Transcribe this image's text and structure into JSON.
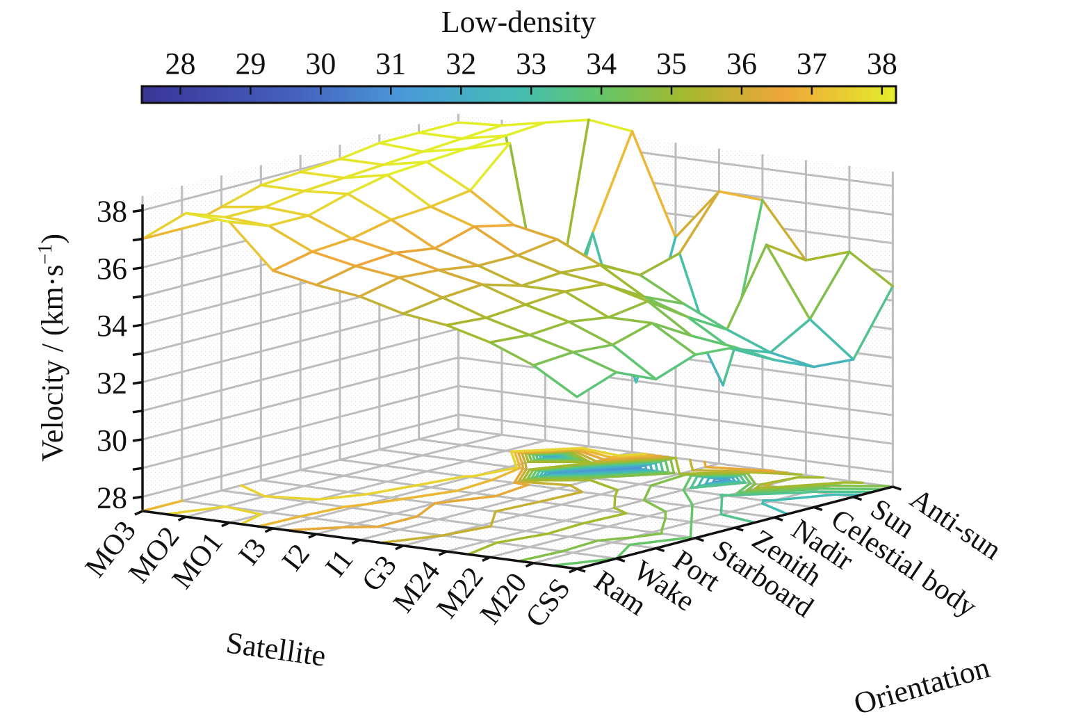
{
  "chart_data": {
    "type": "surface-mesh-with-contour",
    "colorbar": {
      "title": "Low-density",
      "ticks": [
        "28",
        "29",
        "30",
        "31",
        "32",
        "33",
        "34",
        "35",
        "36",
        "37",
        "38"
      ],
      "range": [
        27.45,
        38.2
      ],
      "colors": [
        "#3b3b9a",
        "#4656b4",
        "#4a7ccc",
        "#4aa3dc",
        "#47b8c2",
        "#4ec496",
        "#70c658",
        "#a3b830",
        "#e7a637",
        "#e9c22e",
        "#e6ec2a"
      ]
    },
    "zlabel": "Velocity / (km·s",
    "zlabel_sup": "−1",
    "zlabel_close": ")",
    "zticks": [
      "28",
      "30",
      "32",
      "34",
      "36",
      "38"
    ],
    "zlim": [
      27.5,
      38.5
    ],
    "xlabel": "Satellite",
    "xticks": [
      "MO3",
      "MO2",
      "MO1",
      "I3",
      "I2",
      "I1",
      "G3",
      "M24",
      "M22",
      "M20",
      "CSS"
    ],
    "ylabel": "Orientation",
    "yticks": [
      "Ram",
      "Wake",
      "Port",
      "Starboard",
      "Zenith",
      "Nadir",
      "Celestial body",
      "Sun",
      "Anti-sun"
    ],
    "grid": true,
    "z_values_by_satellite": [
      [
        37.0,
        37.0,
        37.4,
        37.8,
        37.9,
        38.0,
        38.2,
        38.2,
        38.2
      ],
      [
        38.1,
        37.6,
        37.6,
        37.8,
        37.9,
        38.0,
        38.1,
        38.2,
        38.3
      ],
      [
        38.0,
        37.5,
        37.5,
        37.9,
        38.2,
        38.3,
        38.4,
        38.5,
        38.6
      ],
      [
        36.5,
        36.8,
        36.9,
        37.2,
        37.3,
        37.5,
        38.8,
        31.2,
        38.9
      ],
      [
        36.2,
        36.5,
        36.6,
        36.4,
        36.8,
        36.5,
        31.0,
        35.5,
        38.7
      ],
      [
        36.0,
        36.3,
        36.2,
        36.0,
        36.0,
        36.2,
        35.0,
        30.5,
        35.2
      ],
      [
        35.6,
        35.8,
        35.9,
        35.5,
        35.6,
        35.5,
        34.8,
        35.2,
        37.0
      ],
      [
        35.4,
        35.3,
        35.4,
        35.5,
        35.4,
        34.6,
        34.0,
        30.8,
        36.9
      ],
      [
        35.0,
        34.9,
        35.0,
        34.8,
        35.0,
        34.1,
        33.3,
        35.9,
        35.0
      ],
      [
        34.4,
        34.5,
        34.4,
        34.8,
        34.0,
        33.2,
        32.7,
        33.5,
        35.5
      ],
      [
        33.5,
        34.0,
        33.4,
        33.9,
        33.8,
        33.0,
        32.4,
        32.3,
        34.5
      ]
    ],
    "ground_contour_base": 27.5
  }
}
